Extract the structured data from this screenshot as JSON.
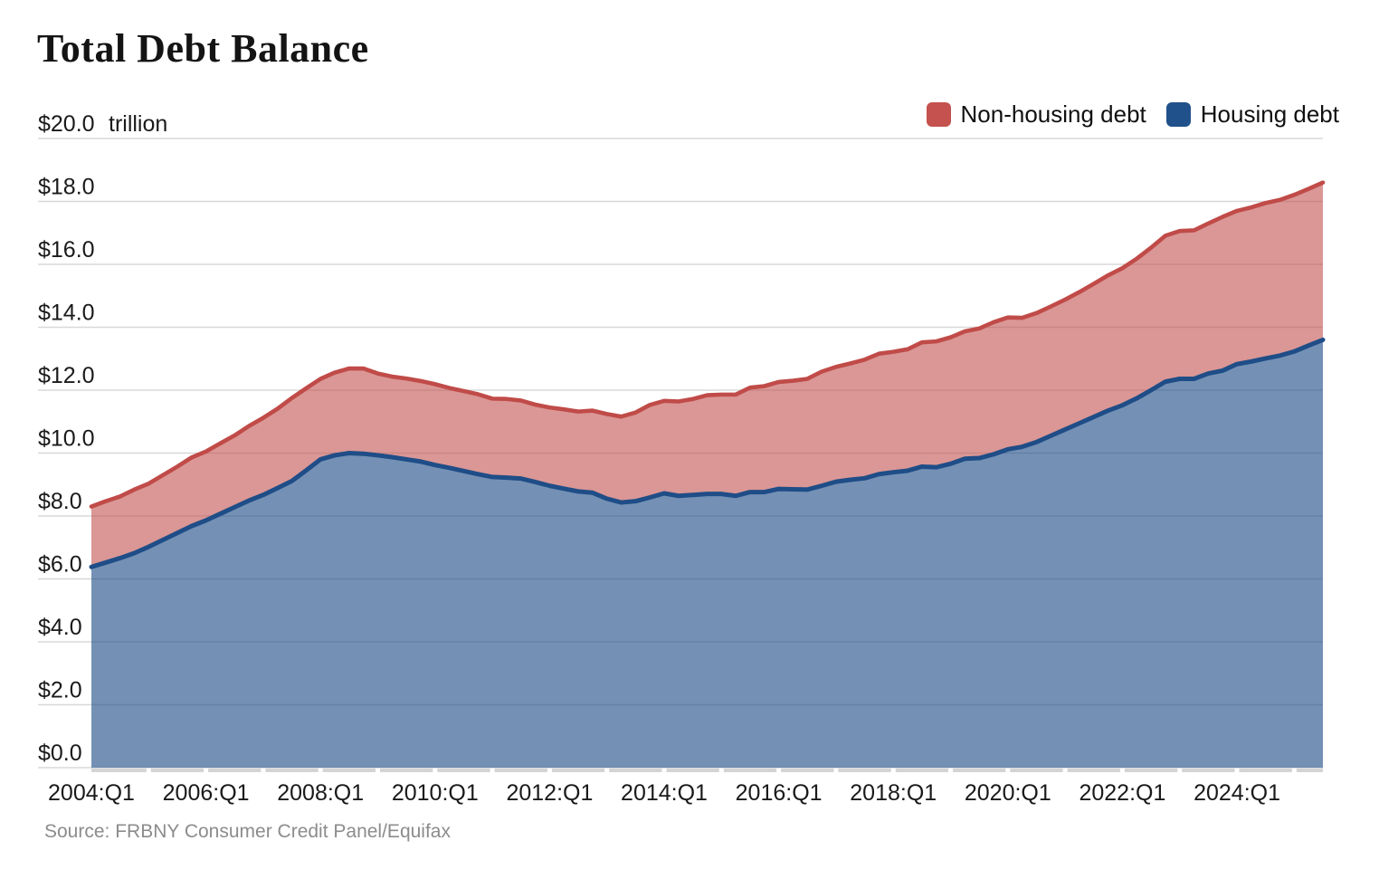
{
  "page": {
    "title": "Total Debt Balance",
    "source": "Source: FRBNY Consumer Credit Panel/Equifax"
  },
  "legend": [
    {
      "label": "Non-housing debt",
      "color": "#c5524e"
    },
    {
      "label": "Housing debt",
      "color": "#21518b"
    }
  ],
  "chart_data": {
    "type": "area",
    "stacked": true,
    "title": "Total Debt Balance",
    "unit_label": "trillion",
    "ylabel_prefix": "$",
    "ylim": [
      0,
      20
    ],
    "y_tick_step": 2,
    "y_tick_labels": [
      "$0.0",
      "$2.0",
      "$4.0",
      "$6.0",
      "$8.0",
      "$10.0",
      "$12.0",
      "$14.0",
      "$16.0",
      "$18.0",
      "$20.0"
    ],
    "x_tick_labels": [
      "2004:Q1",
      "2006:Q1",
      "2008:Q1",
      "2010:Q1",
      "2012:Q1",
      "2014:Q1",
      "2016:Q1",
      "2018:Q1",
      "2020:Q1",
      "2022:Q1",
      "2024:Q1"
    ],
    "x_tick_indices": [
      0,
      8,
      16,
      24,
      32,
      40,
      48,
      56,
      64,
      72,
      80
    ],
    "grid": "horizontal",
    "legend_position": "top-right",
    "x": [
      "2004:Q1",
      "2004:Q2",
      "2004:Q3",
      "2004:Q4",
      "2005:Q1",
      "2005:Q2",
      "2005:Q3",
      "2005:Q4",
      "2006:Q1",
      "2006:Q2",
      "2006:Q3",
      "2006:Q4",
      "2007:Q1",
      "2007:Q2",
      "2007:Q3",
      "2007:Q4",
      "2008:Q1",
      "2008:Q2",
      "2008:Q3",
      "2008:Q4",
      "2009:Q1",
      "2009:Q2",
      "2009:Q3",
      "2009:Q4",
      "2010:Q1",
      "2010:Q2",
      "2010:Q3",
      "2010:Q4",
      "2011:Q1",
      "2011:Q2",
      "2011:Q3",
      "2011:Q4",
      "2012:Q1",
      "2012:Q2",
      "2012:Q3",
      "2012:Q4",
      "2013:Q1",
      "2013:Q2",
      "2013:Q3",
      "2013:Q4",
      "2014:Q1",
      "2014:Q2",
      "2014:Q3",
      "2014:Q4",
      "2015:Q1",
      "2015:Q2",
      "2015:Q3",
      "2015:Q4",
      "2016:Q1",
      "2016:Q2",
      "2016:Q3",
      "2016:Q4",
      "2017:Q1",
      "2017:Q2",
      "2017:Q3",
      "2017:Q4",
      "2018:Q1",
      "2018:Q2",
      "2018:Q3",
      "2018:Q4",
      "2019:Q1",
      "2019:Q2",
      "2019:Q3",
      "2019:Q4",
      "2020:Q1",
      "2020:Q2",
      "2020:Q3",
      "2020:Q4",
      "2021:Q1",
      "2021:Q2",
      "2021:Q3",
      "2021:Q4",
      "2022:Q1",
      "2022:Q2",
      "2022:Q3",
      "2022:Q4",
      "2023:Q1",
      "2023:Q2",
      "2023:Q3",
      "2023:Q4",
      "2024:Q1",
      "2024:Q2",
      "2024:Q3",
      "2024:Q4",
      "2025:Q1",
      "2025:Q2",
      "2025:Q3"
    ],
    "series": [
      {
        "name": "Housing debt",
        "stroke": "#1f4d87",
        "fill_opacity": 0.62,
        "values": [
          6.38,
          6.52,
          6.66,
          6.82,
          7.02,
          7.24,
          7.46,
          7.68,
          7.86,
          8.07,
          8.28,
          8.49,
          8.67,
          8.89,
          9.11,
          9.45,
          9.8,
          9.93,
          10.0,
          9.98,
          9.93,
          9.87,
          9.8,
          9.73,
          9.62,
          9.53,
          9.43,
          9.33,
          9.24,
          9.22,
          9.19,
          9.08,
          8.96,
          8.87,
          8.78,
          8.74,
          8.55,
          8.43,
          8.47,
          8.59,
          8.72,
          8.64,
          8.67,
          8.7,
          8.7,
          8.64,
          8.76,
          8.76,
          8.86,
          8.85,
          8.84,
          8.96,
          9.09,
          9.15,
          9.2,
          9.33,
          9.39,
          9.44,
          9.57,
          9.55,
          9.66,
          9.82,
          9.84,
          9.96,
          10.12,
          10.2,
          10.35,
          10.55,
          10.75,
          10.95,
          11.15,
          11.35,
          11.52,
          11.74,
          12.0,
          12.27,
          12.36,
          12.36,
          12.53,
          12.62,
          12.83,
          12.91,
          13.01,
          13.1,
          13.23,
          13.42,
          13.6
        ]
      },
      {
        "name": "Non-housing debt",
        "stroke": "#c04b48",
        "fill_opacity": 0.58,
        "values": [
          1.92,
          1.95,
          1.96,
          2.02,
          2.01,
          2.06,
          2.11,
          2.18,
          2.19,
          2.24,
          2.28,
          2.37,
          2.45,
          2.52,
          2.64,
          2.61,
          2.56,
          2.63,
          2.69,
          2.71,
          2.6,
          2.56,
          2.57,
          2.56,
          2.57,
          2.54,
          2.54,
          2.54,
          2.49,
          2.5,
          2.48,
          2.46,
          2.49,
          2.52,
          2.54,
          2.61,
          2.69,
          2.73,
          2.82,
          2.94,
          2.94,
          3.0,
          3.05,
          3.14,
          3.16,
          3.22,
          3.32,
          3.37,
          3.4,
          3.45,
          3.52,
          3.63,
          3.65,
          3.7,
          3.77,
          3.83,
          3.83,
          3.86,
          3.95,
          4.0,
          4.02,
          4.05,
          4.12,
          4.2,
          4.19,
          4.1,
          4.1,
          4.11,
          4.13,
          4.17,
          4.23,
          4.3,
          4.36,
          4.44,
          4.53,
          4.64,
          4.7,
          4.72,
          4.77,
          4.89,
          4.87,
          4.9,
          4.94,
          4.95,
          4.98,
          4.98,
          5.0
        ]
      }
    ],
    "colors": {
      "grid": "#d8d8d8",
      "axis_band": "#d4d4d4",
      "housing_stroke": "#1f4d87",
      "non_housing_stroke": "#c04b48"
    }
  }
}
